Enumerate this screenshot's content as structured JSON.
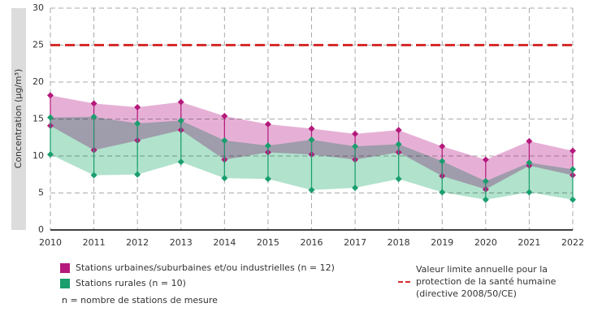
{
  "chart_data": {
    "type": "range-band",
    "y_label": "Concentration (µg/m³)",
    "x": [
      2010,
      2011,
      2012,
      2013,
      2014,
      2015,
      2016,
      2017,
      2018,
      2019,
      2020,
      2021,
      2022
    ],
    "xlim": [
      2010,
      2022
    ],
    "xticks": [
      2010,
      2011,
      2012,
      2013,
      2014,
      2015,
      2016,
      2017,
      2018,
      2019,
      2020,
      2021,
      2022
    ],
    "ylim": [
      0,
      30
    ],
    "yticks": [
      0,
      5,
      10,
      15,
      20,
      25,
      30
    ],
    "grid": true,
    "series": [
      {
        "name": "Stations urbaines/suburbaines et/ou industrielles (n = 12)",
        "color": "#b5197c",
        "band_color": "#e6b0d6",
        "max": [
          18.2,
          17.1,
          16.6,
          17.3,
          15.4,
          14.3,
          13.7,
          13.0,
          13.5,
          11.3,
          9.5,
          12.0,
          10.7
        ],
        "min": [
          14.1,
          10.8,
          12.1,
          13.5,
          9.5,
          10.5,
          10.2,
          9.5,
          10.5,
          7.3,
          5.5,
          8.7,
          7.4
        ]
      },
      {
        "name": "Stations rurales (n = 10)",
        "color": "#1a9e6e",
        "band_color": "#b0e2cc",
        "max": [
          15.2,
          15.3,
          14.4,
          14.8,
          12.1,
          11.4,
          12.2,
          11.3,
          11.6,
          9.3,
          6.6,
          9.1,
          8.2
        ],
        "min": [
          10.2,
          7.4,
          7.5,
          9.2,
          7.0,
          6.9,
          5.4,
          5.7,
          6.9,
          5.1,
          4.1,
          5.1,
          4.1
        ]
      }
    ],
    "reference_line": {
      "value": 25,
      "color": "#d62c2c",
      "label": [
        "Valeur limite annuelle pour la",
        "protection de la santé humaine",
        "(directive 2008/50/CE)"
      ]
    },
    "note": "n = nombre de stations de mesure"
  }
}
